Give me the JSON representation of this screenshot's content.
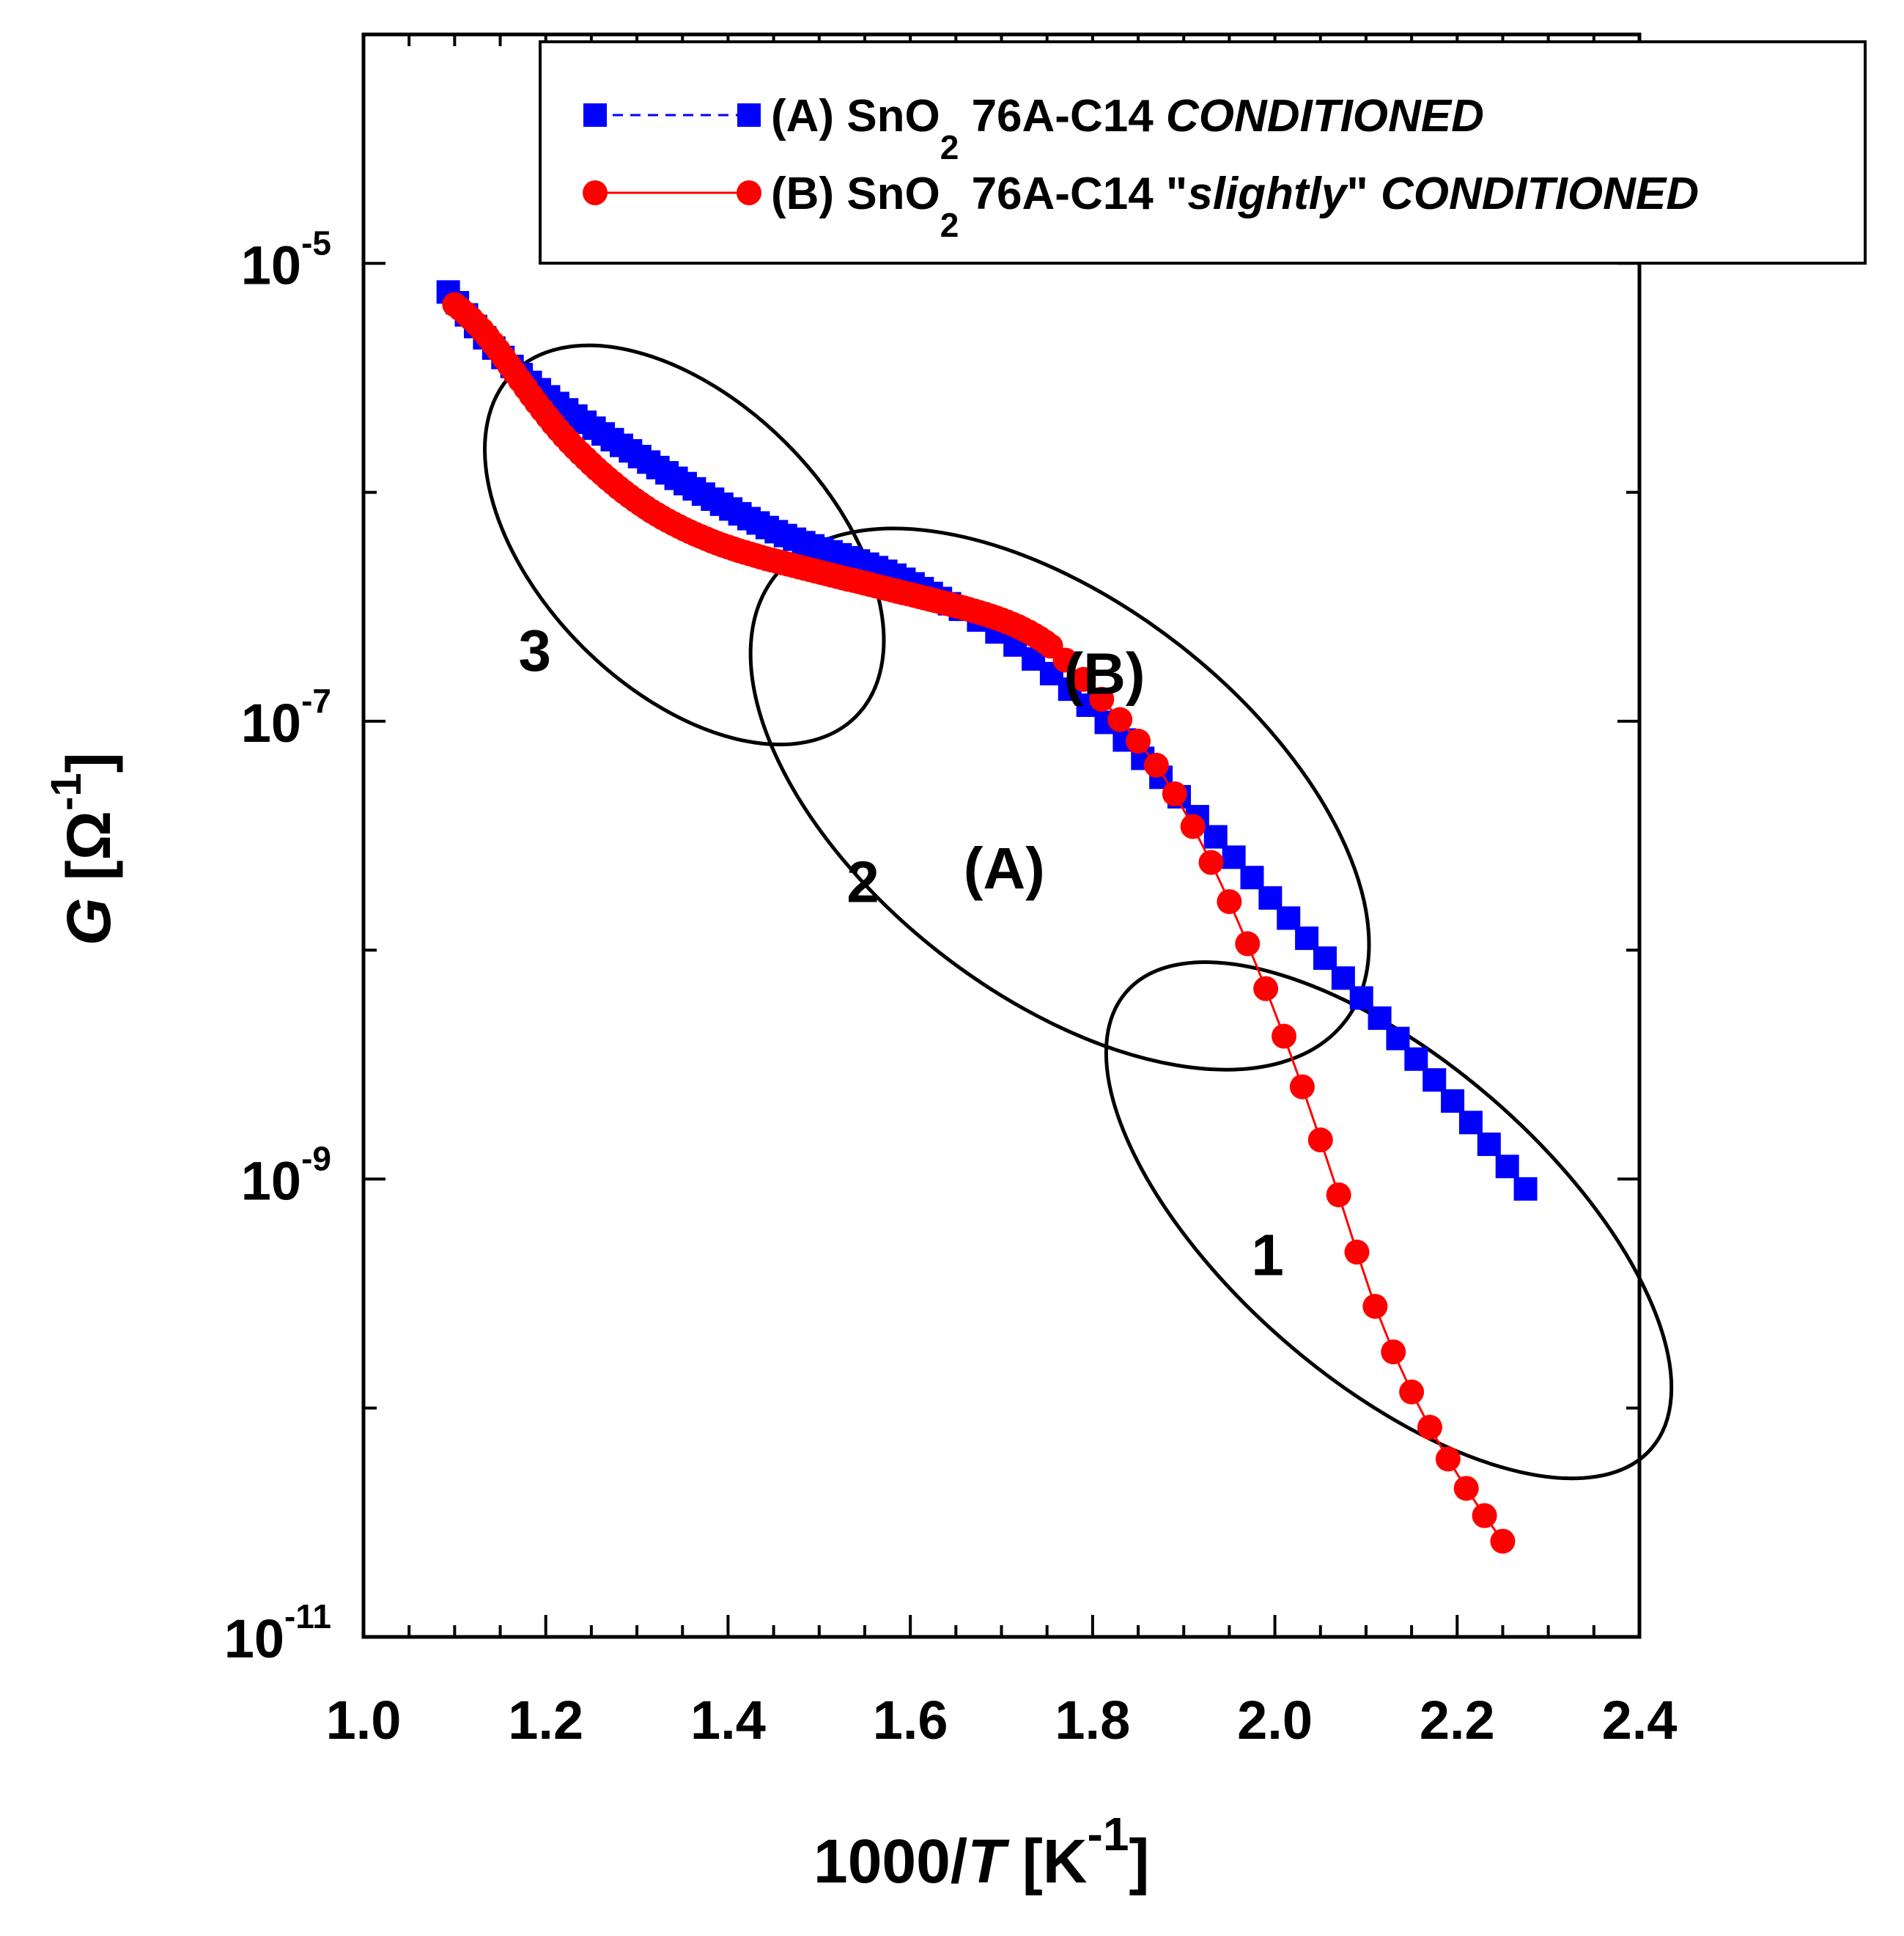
{
  "chart_data": {
    "type": "scatter",
    "xlabel": {
      "prefix": "1000/",
      "var": "T",
      "unit_open": " [K",
      "unit_exp": "-1",
      "unit_close": "]"
    },
    "ylabel": {
      "var": "G",
      "unit_open": " [Ω",
      "unit_exp": "-1",
      "unit_close": "]"
    },
    "xlim": [
      1.0,
      2.4
    ],
    "ylim_log10": [
      -11,
      -4
    ],
    "y_scale": "log",
    "x_ticks": [
      "1.0",
      "1.2",
      "1.4",
      "1.6",
      "1.8",
      "2.0",
      "2.2",
      "2.4"
    ],
    "x_tick_values": [
      1.0,
      1.2,
      1.4,
      1.6,
      1.8,
      2.0,
      2.2,
      2.4
    ],
    "y_ticks": [
      {
        "log10": -5,
        "base": "10",
        "exp": "-5"
      },
      {
        "log10": -7,
        "base": "10",
        "exp": "-7"
      },
      {
        "log10": -9,
        "base": "10",
        "exp": "-9"
      },
      {
        "log10": -11,
        "base": "10",
        "exp": "-11"
      }
    ],
    "legend_position": "top-right",
    "series": [
      {
        "name": "(A) SnO2 76A-C14 CONDITIONED",
        "label_parts": [
          {
            "t": "(A) SnO",
            "style": "normal"
          },
          {
            "t": "2",
            "style": "sub"
          },
          {
            "t": " 76A-C14 ",
            "style": "normal"
          },
          {
            "t": "CONDITIONED",
            "style": "italic"
          }
        ],
        "marker": "square",
        "color": "#0000FF",
        "line_style": "dashed",
        "x": [
          1.093,
          1.103,
          1.113,
          1.123,
          1.133,
          1.143,
          1.153,
          1.163,
          1.173,
          1.183,
          1.193,
          1.203,
          1.213,
          1.223,
          1.233,
          1.243,
          1.253,
          1.263,
          1.273,
          1.283,
          1.293,
          1.303,
          1.313,
          1.323,
          1.333,
          1.343,
          1.353,
          1.363,
          1.373,
          1.383,
          1.393,
          1.403,
          1.413,
          1.423,
          1.433,
          1.443,
          1.453,
          1.463,
          1.473,
          1.483,
          1.493,
          1.503,
          1.513,
          1.523,
          1.533,
          1.543,
          1.553,
          1.563,
          1.573,
          1.583,
          1.593,
          1.603,
          1.613,
          1.623,
          1.633,
          1.643,
          1.655,
          1.675,
          1.695,
          1.715,
          1.735,
          1.755,
          1.775,
          1.795,
          1.815,
          1.835,
          1.855,
          1.875,
          1.895,
          1.915,
          1.935,
          1.955,
          1.975,
          1.995,
          2.015,
          2.035,
          2.055,
          2.075,
          2.095,
          2.115,
          2.135,
          2.155,
          2.175,
          2.195,
          2.215,
          2.235,
          2.255,
          2.275
        ],
        "log10_y": [
          -5.125,
          -5.172,
          -5.225,
          -5.276,
          -5.325,
          -5.37,
          -5.411,
          -5.45,
          -5.486,
          -5.52,
          -5.552,
          -5.583,
          -5.612,
          -5.64,
          -5.667,
          -5.694,
          -5.72,
          -5.745,
          -5.77,
          -5.795,
          -5.819,
          -5.844,
          -5.868,
          -5.892,
          -5.915,
          -5.939,
          -5.962,
          -5.985,
          -6.008,
          -6.03,
          -6.052,
          -6.073,
          -6.094,
          -6.115,
          -6.134,
          -6.154,
          -6.172,
          -6.189,
          -6.205,
          -6.22,
          -6.234,
          -6.247,
          -6.26,
          -6.273,
          -6.286,
          -6.3,
          -6.314,
          -6.329,
          -6.345,
          -6.362,
          -6.38,
          -6.4,
          -6.421,
          -6.442,
          -6.464,
          -6.487,
          -6.511,
          -6.558,
          -6.61,
          -6.667,
          -6.728,
          -6.792,
          -6.86,
          -6.93,
          -7.005,
          -7.082,
          -7.162,
          -7.245,
          -7.33,
          -7.417,
          -7.505,
          -7.594,
          -7.683,
          -7.772,
          -7.86,
          -7.948,
          -8.035,
          -8.122,
          -8.209,
          -8.297,
          -8.386,
          -8.476,
          -8.567,
          -8.659,
          -8.753,
          -8.848,
          -8.945,
          -9.043
        ]
      },
      {
        "name": "(B) SnO2 76A-C14 \"slightly\" CONDITIONED",
        "label_parts": [
          {
            "t": "(B) SnO",
            "style": "normal"
          },
          {
            "t": "2",
            "style": "sub"
          },
          {
            "t": " 76A-C14 \"",
            "style": "normal"
          },
          {
            "t": "slightly",
            "style": "italic"
          },
          {
            "t": "\" ",
            "style": "normal"
          },
          {
            "t": "CONDITIONED",
            "style": "italic"
          }
        ],
        "marker": "circle",
        "color": "#FF0000",
        "line_style": "solid",
        "x": [
          1.1,
          1.106,
          1.112,
          1.118,
          1.124,
          1.13,
          1.136,
          1.142,
          1.148,
          1.154,
          1.16,
          1.166,
          1.172,
          1.178,
          1.184,
          1.19,
          1.196,
          1.202,
          1.208,
          1.214,
          1.22,
          1.226,
          1.232,
          1.238,
          1.244,
          1.25,
          1.256,
          1.262,
          1.268,
          1.274,
          1.28,
          1.286,
          1.292,
          1.298,
          1.304,
          1.31,
          1.316,
          1.322,
          1.328,
          1.334,
          1.34,
          1.346,
          1.352,
          1.358,
          1.364,
          1.37,
          1.376,
          1.382,
          1.388,
          1.394,
          1.4,
          1.406,
          1.412,
          1.418,
          1.424,
          1.43,
          1.436,
          1.442,
          1.448,
          1.454,
          1.46,
          1.466,
          1.472,
          1.478,
          1.484,
          1.49,
          1.496,
          1.502,
          1.508,
          1.514,
          1.52,
          1.526,
          1.532,
          1.538,
          1.544,
          1.55,
          1.556,
          1.562,
          1.568,
          1.574,
          1.58,
          1.586,
          1.592,
          1.598,
          1.604,
          1.61,
          1.616,
          1.622,
          1.628,
          1.634,
          1.64,
          1.646,
          1.652,
          1.658,
          1.664,
          1.67,
          1.676,
          1.682,
          1.688,
          1.694,
          1.7,
          1.706,
          1.712,
          1.718,
          1.724,
          1.73,
          1.736,
          1.742,
          1.748,
          1.754,
          1.77,
          1.79,
          1.81,
          1.83,
          1.85,
          1.87,
          1.89,
          1.91,
          1.93,
          1.95,
          1.97,
          1.99,
          2.01,
          2.03,
          2.05,
          2.07,
          2.09,
          2.11,
          2.13,
          2.15,
          2.17,
          2.19,
          2.21,
          2.23,
          2.25
        ],
        "log10_y": [
          -5.18,
          -5.198,
          -5.219,
          -5.241,
          -5.265,
          -5.291,
          -5.319,
          -5.349,
          -5.38,
          -5.412,
          -5.445,
          -5.478,
          -5.511,
          -5.544,
          -5.577,
          -5.609,
          -5.64,
          -5.67,
          -5.7,
          -5.728,
          -5.755,
          -5.781,
          -5.806,
          -5.83,
          -5.853,
          -5.876,
          -5.898,
          -5.919,
          -5.94,
          -5.96,
          -5.98,
          -5.999,
          -6.017,
          -6.034,
          -6.051,
          -6.067,
          -6.083,
          -6.097,
          -6.111,
          -6.124,
          -6.137,
          -6.149,
          -6.161,
          -6.172,
          -6.183,
          -6.193,
          -6.203,
          -6.213,
          -6.222,
          -6.231,
          -6.239,
          -6.247,
          -6.255,
          -6.262,
          -6.269,
          -6.276,
          -6.283,
          -6.29,
          -6.296,
          -6.302,
          -6.308,
          -6.314,
          -6.32,
          -6.326,
          -6.332,
          -6.338,
          -6.344,
          -6.35,
          -6.356,
          -6.362,
          -6.368,
          -6.374,
          -6.38,
          -6.385,
          -6.391,
          -6.397,
          -6.403,
          -6.409,
          -6.415,
          -6.421,
          -6.427,
          -6.433,
          -6.439,
          -6.444,
          -6.45,
          -6.456,
          -6.462,
          -6.468,
          -6.474,
          -6.48,
          -6.486,
          -6.492,
          -6.498,
          -6.504,
          -6.511,
          -6.518,
          -6.525,
          -6.532,
          -6.54,
          -6.548,
          -6.557,
          -6.566,
          -6.576,
          -6.586,
          -6.598,
          -6.61,
          -6.624,
          -6.638,
          -6.654,
          -6.672,
          -6.733,
          -6.817,
          -6.904,
          -6.993,
          -7.087,
          -7.192,
          -7.317,
          -7.46,
          -7.617,
          -7.788,
          -7.972,
          -8.168,
          -8.376,
          -8.597,
          -8.829,
          -9.069,
          -9.319,
          -9.556,
          -9.755,
          -9.93,
          -10.084,
          -10.223,
          -10.351,
          -10.47,
          -10.582
        ]
      }
    ],
    "annotations": [
      {
        "text": "3",
        "x": 1.188,
        "log10_y": -6.78
      },
      {
        "text": "(B)",
        "x": 1.813,
        "log10_y": -6.88
      },
      {
        "text": "2",
        "x": 1.548,
        "log10_y": -7.79
      },
      {
        "text": "(A)",
        "x": 1.703,
        "log10_y": -7.73
      },
      {
        "text": "1",
        "x": 1.992,
        "log10_y": -9.42
      }
    ],
    "ellipses": [
      {
        "name": "region-3",
        "cx": 1.352,
        "cy_log10": -6.23,
        "rx": 0.158,
        "ry_log10": 1.06,
        "angle_deg": -45
      },
      {
        "name": "region-2",
        "cx": 1.764,
        "cy_log10": -7.34,
        "rx": 0.214,
        "ry_log10": 1.58,
        "angle_deg": -52
      },
      {
        "name": "region-1",
        "cx": 2.125,
        "cy_log10": -9.18,
        "rx": 0.175,
        "ry_log10": 1.52,
        "angle_deg": -49
      }
    ]
  }
}
